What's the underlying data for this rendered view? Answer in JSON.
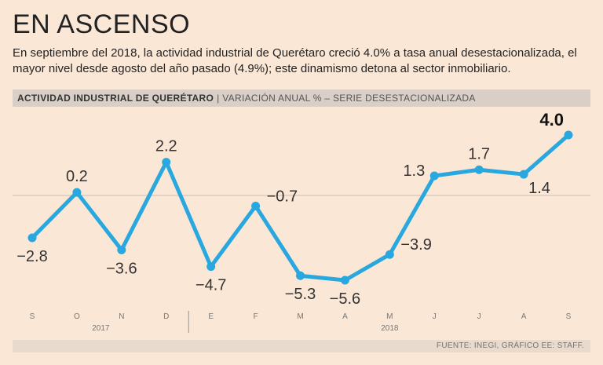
{
  "header": {
    "title": "EN ASCENSO",
    "subtitle": "En septiembre del 2018, la actividad industrial de Querétaro creció 4.0% a tasa anual desestacionalizada, el mayor nivel desde agosto del año pasado (4.9%); este dinamismo detona al sector inmobiliario."
  },
  "band": {
    "strong": "ACTIVIDAD INDUSTRIAL DE QUERÉTARO",
    "separator": "|",
    "light": "VARIACIÓN ANUAL % – SERIE DESESTACIONALIZADA"
  },
  "footer": {
    "source": "FUENTE: INEGI, GRÁFICO EE: STAFF."
  },
  "colors": {
    "line": "#29a8e0",
    "background": "#fbe7d6",
    "zero_line": "#c9bfb5"
  },
  "chart_data": {
    "type": "line",
    "title": "ACTIVIDAD INDUSTRIAL DE QUERÉTARO",
    "subtitle": "VARIACIÓN ANUAL % – SERIE DESESTACIONALIZADA",
    "categories": [
      "S",
      "O",
      "N",
      "D",
      "E",
      "F",
      "M",
      "A",
      "M",
      "J",
      "J",
      "A",
      "S"
    ],
    "years": [
      {
        "label": "2017",
        "from": 0,
        "to": 3
      },
      {
        "label": "2018",
        "from": 4,
        "to": 12
      }
    ],
    "series": [
      {
        "name": "Variación anual %",
        "values": [
          -2.8,
          0.2,
          -3.6,
          2.2,
          -4.7,
          -0.7,
          -5.3,
          -5.6,
          -3.9,
          1.3,
          1.7,
          1.4,
          4.0
        ]
      }
    ],
    "labels": [
      "−2.8",
      "0.2",
      "−3.6",
      "2.2",
      "−4.7",
      "−0.7",
      "−5.3",
      "−5.6",
      "−3.9",
      "1.3",
      "1.7",
      "1.4",
      "4.0"
    ],
    "label_positions": [
      "below",
      "above",
      "below",
      "above",
      "below",
      "right",
      "below",
      "below",
      "right",
      "left",
      "above",
      "below-right",
      "above-left"
    ],
    "ylim": [
      -6,
      5
    ],
    "zero_line": true,
    "grid": false
  }
}
